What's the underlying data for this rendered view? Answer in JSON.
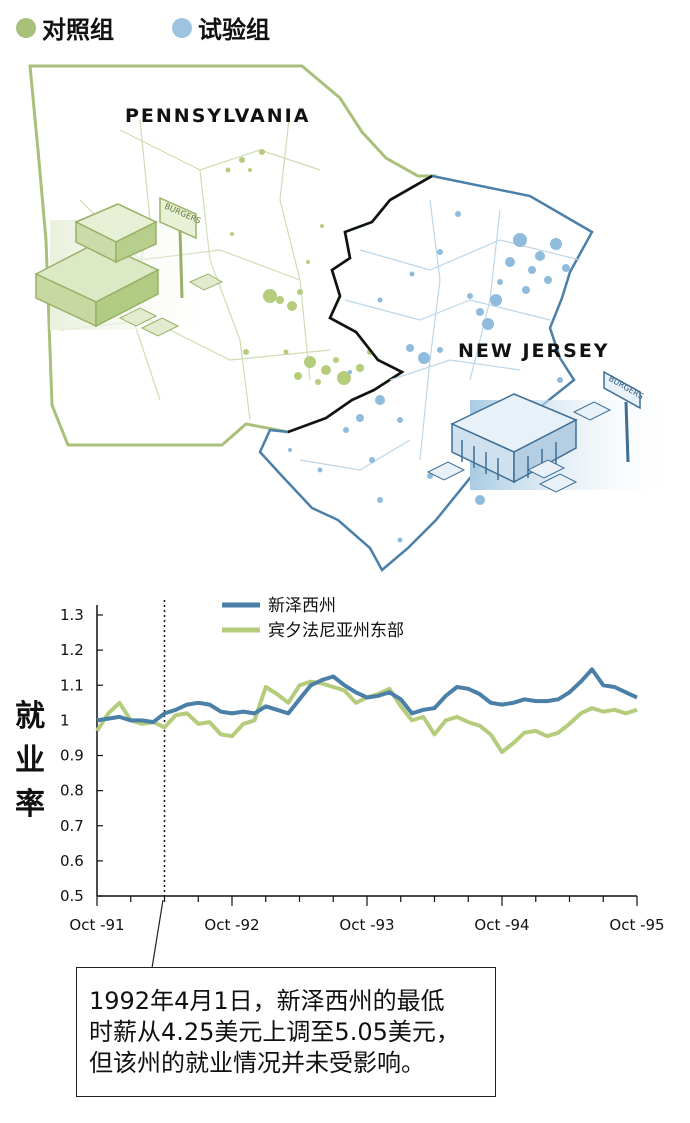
{
  "legend": {
    "control": {
      "label": "对照组",
      "color": "#a8c07a"
    },
    "treatment": {
      "label": "试验组",
      "color": "#9dc3df"
    }
  },
  "map": {
    "pennsylvania_label": "PENNSYLVANIA",
    "new_jersey_label": "NEW JERSEY",
    "sign_text": "BURGERS"
  },
  "chart_data": {
    "type": "line",
    "y_axis": {
      "ticks": [
        "1.3",
        "1.2",
        "1.1",
        "1",
        "0.9",
        "0.8",
        "0.7",
        "0.6",
        "0.5"
      ],
      "ylim": [
        0.5,
        1.35
      ]
    },
    "x_axis": {
      "tick_labels": [
        "Oct -91",
        "Oct -92",
        "Oct -93",
        "Oct -94",
        "Oct -95"
      ],
      "n_points": 49
    },
    "ylabel": "就业率",
    "event_index": 6,
    "series": [
      {
        "name": "新泽西州",
        "color": "#4a7fa8",
        "values": [
          1.0,
          1.005,
          1.01,
          1.0,
          1.0,
          0.995,
          1.02,
          1.03,
          1.045,
          1.05,
          1.045,
          1.025,
          1.02,
          1.025,
          1.02,
          1.04,
          1.03,
          1.02,
          1.06,
          1.1,
          1.115,
          1.125,
          1.1,
          1.08,
          1.065,
          1.07,
          1.08,
          1.06,
          1.02,
          1.03,
          1.035,
          1.07,
          1.095,
          1.09,
          1.075,
          1.05,
          1.045,
          1.05,
          1.06,
          1.055,
          1.055,
          1.06,
          1.08,
          1.11,
          1.145,
          1.1,
          1.095,
          1.08,
          1.065
        ]
      },
      {
        "name": "宾夕法尼亚州东部",
        "color": "#b5cc7d",
        "values": [
          0.97,
          1.02,
          1.05,
          1.0,
          0.99,
          0.995,
          0.98,
          1.015,
          1.02,
          0.99,
          0.995,
          0.96,
          0.955,
          0.99,
          1.0,
          1.095,
          1.075,
          1.05,
          1.1,
          1.11,
          1.105,
          1.095,
          1.085,
          1.05,
          1.065,
          1.075,
          1.09,
          1.04,
          1.0,
          1.01,
          0.96,
          1.0,
          1.01,
          0.995,
          0.985,
          0.96,
          0.91,
          0.935,
          0.965,
          0.97,
          0.955,
          0.965,
          0.99,
          1.02,
          1.035,
          1.025,
          1.03,
          1.02,
          1.03
        ]
      }
    ]
  },
  "callout": {
    "line1": "1992年4月1日，新泽西州的最低",
    "line2": "时薪从4.25美元上调至5.05美元，",
    "line3": "但该州的就业情况并未受影响。"
  }
}
